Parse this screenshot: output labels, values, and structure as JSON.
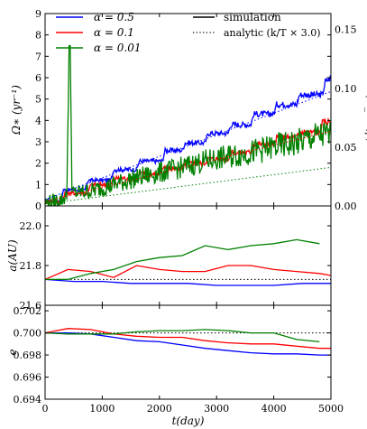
{
  "chart_data": [
    {
      "panel": "top",
      "type": "line",
      "xlim": [
        0,
        5000
      ],
      "ylim": [
        0,
        9
      ],
      "yticks": [
        "0",
        "1",
        "2",
        "3",
        "4",
        "5",
        "6",
        "7",
        "8",
        "9"
      ],
      "ylabel": "Ω∗ (yr⁻¹)",
      "ylim_right": [
        0,
        0.1636
      ],
      "yticks_right": [
        "0.00",
        "0.05",
        "0.10",
        "0.15"
      ],
      "yticks_right_values": [
        0,
        0.05,
        0.1,
        0.15
      ],
      "ylabel_right": "Ω∗ (Ω_orb,p)",
      "legend": {
        "placement": "top",
        "series_entries": [
          "α = 0.5",
          "α = 0.1",
          "α = 0.01"
        ],
        "style_entries": [
          "simulation",
          "analytic (k/T × 3.0)"
        ]
      },
      "series": [
        {
          "name": "α = 0.5",
          "color": "#0000ff",
          "style": "simulation",
          "x": [
            0,
            280,
            320,
            700,
            750,
            1150,
            1200,
            1600,
            1650,
            2050,
            2100,
            2400,
            2450,
            2800,
            2850,
            3200,
            3250,
            3600,
            3650,
            4000,
            4050,
            4400,
            4450,
            4850,
            4900,
            5000
          ],
          "y": [
            0.25,
            0.25,
            0.75,
            0.75,
            1.2,
            1.2,
            1.7,
            1.7,
            2.1,
            2.1,
            2.6,
            2.6,
            2.95,
            2.95,
            3.4,
            3.4,
            3.8,
            3.8,
            4.3,
            4.3,
            4.75,
            4.75,
            5.2,
            5.2,
            5.8,
            6.0
          ]
        },
        {
          "name": "α = 0.1",
          "color": "#ff0000",
          "style": "simulation",
          "x": [
            0,
            300,
            350,
            750,
            800,
            1150,
            1200,
            1600,
            1650,
            2000,
            2050,
            2400,
            2450,
            2800,
            2850,
            3200,
            3250,
            3600,
            3650,
            4000,
            4050,
            4400,
            4450,
            4800,
            4850,
            5000
          ],
          "y": [
            0.2,
            0.2,
            0.6,
            0.6,
            1.0,
            1.0,
            1.3,
            1.3,
            1.5,
            1.5,
            1.75,
            1.75,
            2.0,
            2.0,
            2.2,
            2.2,
            2.5,
            2.5,
            2.9,
            2.9,
            3.2,
            3.2,
            3.45,
            3.45,
            3.9,
            3.95
          ]
        },
        {
          "name": "α = 0.01",
          "color": "#008000",
          "style": "simulation",
          "x": [
            0,
            300,
            380,
            420,
            440,
            470,
            800,
            1200,
            1600,
            2000,
            2400,
            2800,
            3200,
            3600,
            4000,
            4400,
            4800,
            5000
          ],
          "y": [
            0.15,
            0.3,
            0.5,
            7.5,
            7.5,
            0.6,
            0.7,
            1.0,
            1.3,
            1.55,
            1.8,
            2.1,
            2.3,
            2.5,
            2.75,
            2.95,
            3.3,
            3.3
          ]
        },
        {
          "name": "α = 0.5 analytic",
          "color": "#0000ff",
          "style": "analytic",
          "x": [
            0,
            5000
          ],
          "y": [
            0.3,
            5.35
          ]
        },
        {
          "name": "α = 0.1 analytic",
          "color": "#ff0000",
          "style": "analytic",
          "x": [
            0,
            5000
          ],
          "y": [
            0.2,
            3.5
          ]
        },
        {
          "name": "α = 0.01 analytic",
          "color": "#008000",
          "style": "analytic",
          "x": [
            0,
            5000
          ],
          "y": [
            0.1,
            1.8
          ]
        }
      ]
    },
    {
      "panel": "middle",
      "type": "line",
      "xlim": [
        0,
        5000
      ],
      "ylim": [
        21.6,
        22.1
      ],
      "yticks": [
        "21.6",
        "21.8",
        "22.0"
      ],
      "yticks_values": [
        21.6,
        21.8,
        22.0
      ],
      "ylabel": "a(AU)",
      "reference_line": {
        "y": 21.73,
        "style": "dotted",
        "color": "#000000"
      },
      "series": [
        {
          "name": "α = 0.5",
          "color": "#0000ff",
          "x": [
            0,
            500,
            1000,
            1500,
            2000,
            2500,
            3000,
            3500,
            4000,
            4500,
            5000
          ],
          "y": [
            21.73,
            21.72,
            21.72,
            21.71,
            21.71,
            21.71,
            21.7,
            21.7,
            21.7,
            21.71,
            21.71
          ]
        },
        {
          "name": "α = 0.1",
          "color": "#ff0000",
          "x": [
            0,
            400,
            800,
            1200,
            1600,
            2000,
            2400,
            2800,
            3200,
            3600,
            4000,
            4400,
            4800,
            5000
          ],
          "y": [
            21.73,
            21.78,
            21.77,
            21.74,
            21.8,
            21.78,
            21.77,
            21.77,
            21.8,
            21.8,
            21.78,
            21.77,
            21.76,
            21.75
          ]
        },
        {
          "name": "α = 0.01",
          "color": "#008000",
          "x": [
            0,
            400,
            800,
            1200,
            1600,
            2000,
            2400,
            2800,
            3200,
            3600,
            4000,
            4400,
            4800
          ],
          "y": [
            21.73,
            21.73,
            21.76,
            21.78,
            21.82,
            21.84,
            21.85,
            21.9,
            21.88,
            21.9,
            21.91,
            21.93,
            21.91
          ]
        }
      ]
    },
    {
      "panel": "bottom",
      "type": "line",
      "xlim": [
        0,
        5000
      ],
      "ylim": [
        0.694,
        0.7025
      ],
      "yticks": [
        "0.694",
        "0.696",
        "0.698",
        "0.700",
        "0.702"
      ],
      "yticks_values": [
        0.694,
        0.696,
        0.698,
        0.7,
        0.702
      ],
      "ylabel": "e",
      "xlabel": "t(day)",
      "xticks": [
        "0",
        "1000",
        "2000",
        "3000",
        "4000",
        "5000"
      ],
      "xticks_values": [
        0,
        1000,
        2000,
        3000,
        4000,
        5000
      ],
      "reference_line": {
        "y": 0.7,
        "style": "dotted",
        "color": "#000000"
      },
      "series": [
        {
          "name": "α = 0.5",
          "color": "#0000ff",
          "x": [
            0,
            400,
            800,
            1200,
            1600,
            2000,
            2400,
            2800,
            3200,
            3600,
            4000,
            4400,
            4800,
            5000
          ],
          "y": [
            0.7,
            0.7,
            0.6999,
            0.6996,
            0.6993,
            0.6992,
            0.6989,
            0.6986,
            0.6984,
            0.6982,
            0.6981,
            0.6981,
            0.698,
            0.698
          ]
        },
        {
          "name": "α = 0.1",
          "color": "#ff0000",
          "x": [
            0,
            400,
            800,
            1200,
            1600,
            2000,
            2400,
            2800,
            3200,
            3600,
            4000,
            4400,
            4800,
            5000
          ],
          "y": [
            0.7,
            0.7004,
            0.7003,
            0.6999,
            0.6997,
            0.6996,
            0.6996,
            0.6993,
            0.6991,
            0.699,
            0.699,
            0.6988,
            0.6986,
            0.6986
          ]
        },
        {
          "name": "α = 0.01",
          "color": "#008000",
          "x": [
            0,
            400,
            800,
            1200,
            1600,
            2000,
            2400,
            2800,
            3200,
            3600,
            4000,
            4400,
            4800
          ],
          "y": [
            0.7,
            0.6999,
            0.6999,
            0.6999,
            0.7001,
            0.7002,
            0.7002,
            0.7003,
            0.7002,
            0.7,
            0.7,
            0.6994,
            0.6992
          ]
        }
      ]
    }
  ]
}
